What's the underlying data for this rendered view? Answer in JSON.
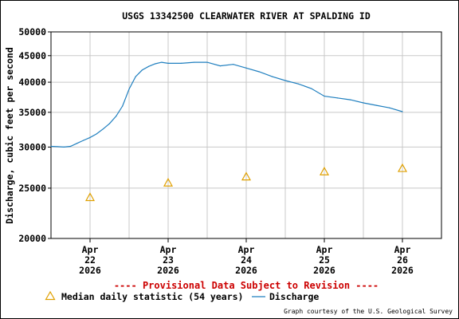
{
  "chart_data": {
    "type": "line",
    "title": "USGS 13342500 CLEARWATER RIVER AT SPALDING ID",
    "ylabel": "Discharge, cubic feet per second",
    "y_scale": "log",
    "ylim": [
      20000,
      50000
    ],
    "y_ticks": [
      {
        "value": 20000,
        "label": "20000"
      },
      {
        "value": 25000,
        "label": "25000"
      },
      {
        "value": 30000,
        "label": "30000"
      },
      {
        "value": 35000,
        "label": "35000"
      },
      {
        "value": 40000,
        "label": "40000"
      },
      {
        "value": 45000,
        "label": "45000"
      },
      {
        "value": 50000,
        "label": "50000"
      }
    ],
    "xlim": [
      "2026-04-21 12:00",
      "2026-04-26 12:00"
    ],
    "x_ticks": [
      {
        "value": "2026-04-22",
        "month": "Apr",
        "day": "22",
        "year": "2026"
      },
      {
        "value": "2026-04-23",
        "month": "Apr",
        "day": "23",
        "year": "2026"
      },
      {
        "value": "2026-04-24",
        "month": "Apr",
        "day": "24",
        "year": "2026"
      },
      {
        "value": "2026-04-25",
        "month": "Apr",
        "day": "25",
        "year": "2026"
      },
      {
        "value": "2026-04-26",
        "month": "Apr",
        "day": "26",
        "year": "2026"
      }
    ],
    "grid": true,
    "series": [
      {
        "name": "Discharge",
        "color": "#1f7fbf",
        "points": [
          {
            "x": "2026-04-21 12:00",
            "y": 30100
          },
          {
            "x": "2026-04-21 14:00",
            "y": 30050
          },
          {
            "x": "2026-04-21 16:00",
            "y": 30000
          },
          {
            "x": "2026-04-21 18:00",
            "y": 30100
          },
          {
            "x": "2026-04-21 20:00",
            "y": 30500
          },
          {
            "x": "2026-04-21 22:00",
            "y": 30900
          },
          {
            "x": "2026-04-22 00:00",
            "y": 31300
          },
          {
            "x": "2026-04-22 02:00",
            "y": 31800
          },
          {
            "x": "2026-04-22 04:00",
            "y": 32500
          },
          {
            "x": "2026-04-22 06:00",
            "y": 33300
          },
          {
            "x": "2026-04-22 08:00",
            "y": 34400
          },
          {
            "x": "2026-04-22 10:00",
            "y": 36000
          },
          {
            "x": "2026-04-22 12:00",
            "y": 38800
          },
          {
            "x": "2026-04-22 14:00",
            "y": 41000
          },
          {
            "x": "2026-04-22 16:00",
            "y": 42200
          },
          {
            "x": "2026-04-22 18:00",
            "y": 42900
          },
          {
            "x": "2026-04-22 20:00",
            "y": 43400
          },
          {
            "x": "2026-04-22 22:00",
            "y": 43700
          },
          {
            "x": "2026-04-23 00:00",
            "y": 43500
          },
          {
            "x": "2026-04-23 04:00",
            "y": 43500
          },
          {
            "x": "2026-04-23 08:00",
            "y": 43700
          },
          {
            "x": "2026-04-23 12:00",
            "y": 43700
          },
          {
            "x": "2026-04-23 16:00",
            "y": 43000
          },
          {
            "x": "2026-04-23 20:00",
            "y": 43300
          },
          {
            "x": "2026-04-24 00:00",
            "y": 42600
          },
          {
            "x": "2026-04-24 04:00",
            "y": 41900
          },
          {
            "x": "2026-04-24 08:00",
            "y": 41000
          },
          {
            "x": "2026-04-24 12:00",
            "y": 40300
          },
          {
            "x": "2026-04-24 16:00",
            "y": 39700
          },
          {
            "x": "2026-04-24 20:00",
            "y": 38900
          },
          {
            "x": "2026-04-25 00:00",
            "y": 37600
          },
          {
            "x": "2026-04-25 04:00",
            "y": 37300
          },
          {
            "x": "2026-04-25 08:00",
            "y": 37000
          },
          {
            "x": "2026-04-25 12:00",
            "y": 36500
          },
          {
            "x": "2026-04-25 16:00",
            "y": 36100
          },
          {
            "x": "2026-04-25 20:00",
            "y": 35700
          },
          {
            "x": "2026-04-26 00:00",
            "y": 35100
          }
        ]
      },
      {
        "name": "Median daily statistic (54 years)",
        "color": "#e0a000",
        "marker": "triangle",
        "points": [
          {
            "x": "2026-04-22",
            "y": 24000
          },
          {
            "x": "2026-04-23",
            "y": 25600
          },
          {
            "x": "2026-04-24",
            "y": 26300
          },
          {
            "x": "2026-04-25",
            "y": 26900
          },
          {
            "x": "2026-04-26",
            "y": 27300
          }
        ]
      }
    ],
    "provisional_notice": "---- Provisional Data Subject to Revision ----",
    "legend": {
      "placement": "bottom",
      "items": [
        {
          "label": "Median daily statistic (54 years)",
          "marker": "triangle",
          "color": "#e0a000"
        },
        {
          "label": "Discharge",
          "marker": "line",
          "color": "#1f7fbf"
        }
      ]
    },
    "credit": "Graph courtesy of the U.S. Geological Survey"
  }
}
